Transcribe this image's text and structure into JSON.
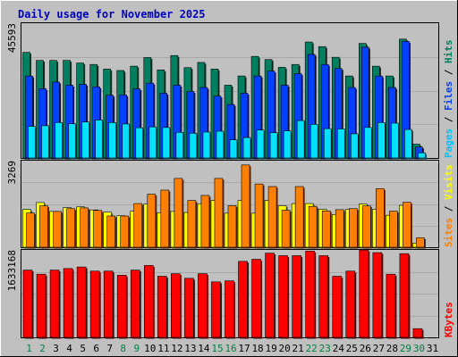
{
  "chart_data": {
    "type": "bar",
    "title": "Daily usage for November 2025",
    "categories": [
      "1",
      "2",
      "3",
      "4",
      "5",
      "6",
      "7",
      "8",
      "9",
      "10",
      "11",
      "12",
      "13",
      "14",
      "15",
      "16",
      "17",
      "18",
      "19",
      "20",
      "21",
      "22",
      "23",
      "24",
      "25",
      "26",
      "27",
      "28",
      "29",
      "30",
      "31"
    ],
    "weekend_days": [
      "1",
      "2",
      "8",
      "9",
      "15",
      "16",
      "22",
      "23",
      "29",
      "30"
    ],
    "panels": [
      {
        "id": "top",
        "ymax_label": "45593",
        "ymax": 45593,
        "right_label": [
          {
            "text": "Pages",
            "color": "#00c0ff"
          },
          {
            "text": " / ",
            "color": "#000000"
          },
          {
            "text": "Files",
            "color": "#0040ff"
          },
          {
            "text": " / ",
            "color": "#000000"
          },
          {
            "text": "Hits",
            "color": "#008060"
          }
        ],
        "series": [
          {
            "name": "Hits",
            "color": "#008060",
            "values": [
              36700,
              33900,
              33900,
              33900,
              33000,
              32500,
              30900,
              30400,
              31900,
              34900,
              30600,
              35600,
              31400,
              33200,
              30900,
              25300,
              28500,
              35300,
              34200,
              31500,
              32500,
              40300,
              38700,
              35000,
              28500,
              39800,
              31900,
              28500,
              41300,
              4800,
              0
            ]
          },
          {
            "name": "Files",
            "color": "#0040ff",
            "values": [
              28500,
              24100,
              26400,
              25300,
              25600,
              24700,
              21800,
              21900,
              24000,
              26000,
              22500,
              25300,
              23100,
              24500,
              21500,
              18600,
              22500,
              28500,
              30200,
              25300,
              29300,
              36000,
              32500,
              31100,
              24500,
              38500,
              28500,
              24500,
              40500,
              3800,
              0
            ]
          },
          {
            "name": "Pages",
            "color": "#00e0ff",
            "values": [
              11000,
              11200,
              12300,
              11900,
              12500,
              13200,
              12300,
              11800,
              10500,
              10800,
              10600,
              8900,
              8600,
              9000,
              9300,
              6300,
              7100,
              9700,
              8800,
              9400,
              13000,
              11700,
              10200,
              10100,
              8400,
              10600,
              12300,
              12100,
              9900,
              1800,
              0
            ]
          }
        ]
      },
      {
        "id": "mid",
        "ymax_label": "3269",
        "ymax": 3269,
        "right_label": [
          {
            "text": "Sites",
            "color": "#ff8000"
          },
          {
            "text": " / ",
            "color": "#000000"
          },
          {
            "text": "Visits",
            "color": "#ffff00"
          }
        ],
        "series": [
          {
            "name": "Visits",
            "color": "#ffff00",
            "values": [
              1490,
              1760,
              1410,
              1560,
              1590,
              1470,
              1380,
              1240,
              1420,
              1700,
              1360,
              1410,
              1370,
              1710,
              1840,
              1340,
              1840,
              1340,
              1840,
              1630,
              1720,
              1720,
              1490,
              1290,
              1490,
              1700,
              1490,
              1260,
              1650,
              160,
              0
            ]
          },
          {
            "name": "Sites",
            "color": "#ff8000",
            "values": [
              1350,
              1630,
              1410,
              1520,
              1550,
              1450,
              1230,
              1230,
              1720,
              2090,
              2250,
              2710,
              1840,
              2040,
              2710,
              1640,
              3240,
              2490,
              2390,
              1460,
              2390,
              1610,
              1430,
              1480,
              1520,
              1630,
              2310,
              1420,
              1770,
              370,
              0
            ]
          }
        ]
      },
      {
        "id": "bot",
        "ymax_label": "1633168",
        "ymax": 1633168,
        "right_label": [
          {
            "text": "KBytes",
            "color": "#ff0000"
          }
        ],
        "series": [
          {
            "name": "KBytes",
            "color": "#ff0000",
            "values": [
              1310000,
              1230000,
              1310000,
              1340000,
              1370000,
              1290000,
              1290000,
              1210000,
              1310000,
              1400000,
              1190000,
              1240000,
              1150000,
              1240000,
              1080000,
              1100000,
              1480000,
              1520000,
              1640000,
              1590000,
              1590000,
              1680000,
              1590000,
              1190000,
              1290000,
              1700000,
              1650000,
              1230000,
              1630000,
              170000,
              0
            ]
          }
        ]
      }
    ]
  }
}
